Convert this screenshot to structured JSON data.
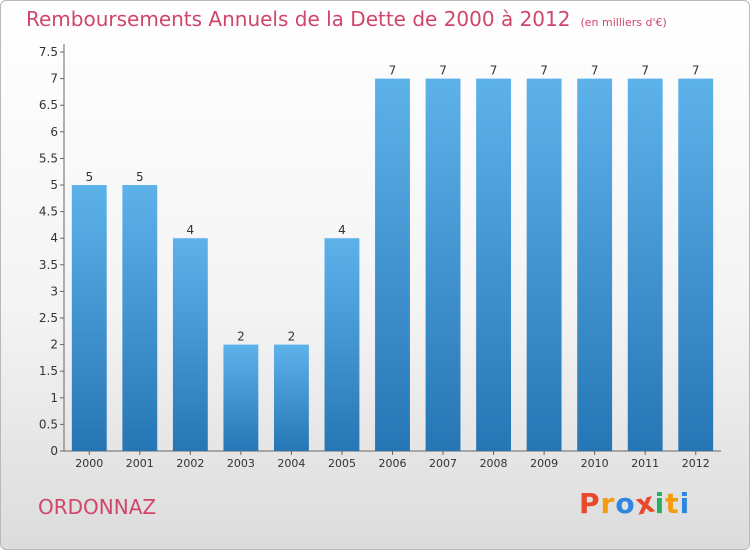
{
  "header": {
    "title": "Remboursements Annuels de la Dette de 2000 à 2012",
    "unit": "(en milliers d'€)"
  },
  "footer": {
    "city": "ORDONNAZ",
    "brand": "Proxiti"
  },
  "colors": {
    "title": "#d0456a",
    "bar_top": "#5eb2ea",
    "bar_bottom": "#2676b5",
    "brand_letters": [
      "#e8492c",
      "#f39c12",
      "#2e86de",
      "#e8492c",
      "#27ae60",
      "#f39c12",
      "#2e86de"
    ]
  },
  "chart_data": {
    "type": "bar",
    "categories": [
      "2000",
      "2001",
      "2002",
      "2003",
      "2004",
      "2005",
      "2006",
      "2007",
      "2008",
      "2009",
      "2010",
      "2011",
      "2012"
    ],
    "values": [
      5,
      5,
      4,
      2,
      2,
      4,
      7,
      7,
      7,
      7,
      7,
      7,
      7
    ],
    "data_labels": [
      "5",
      "5",
      "4",
      "2",
      "2",
      "4",
      "7",
      "7",
      "7",
      "7",
      "7",
      "7",
      "7"
    ],
    "title": "Remboursements Annuels de la Dette de 2000 à 2012",
    "ylim": [
      0,
      7.5
    ],
    "yticks": [
      "0",
      "0.5",
      "1",
      "1.5",
      "2",
      "2.5",
      "3",
      "3.5",
      "4",
      "4.5",
      "5",
      "5.5",
      "6",
      "6.5",
      "7",
      "7.5"
    ],
    "grid": false,
    "legend": "none"
  }
}
